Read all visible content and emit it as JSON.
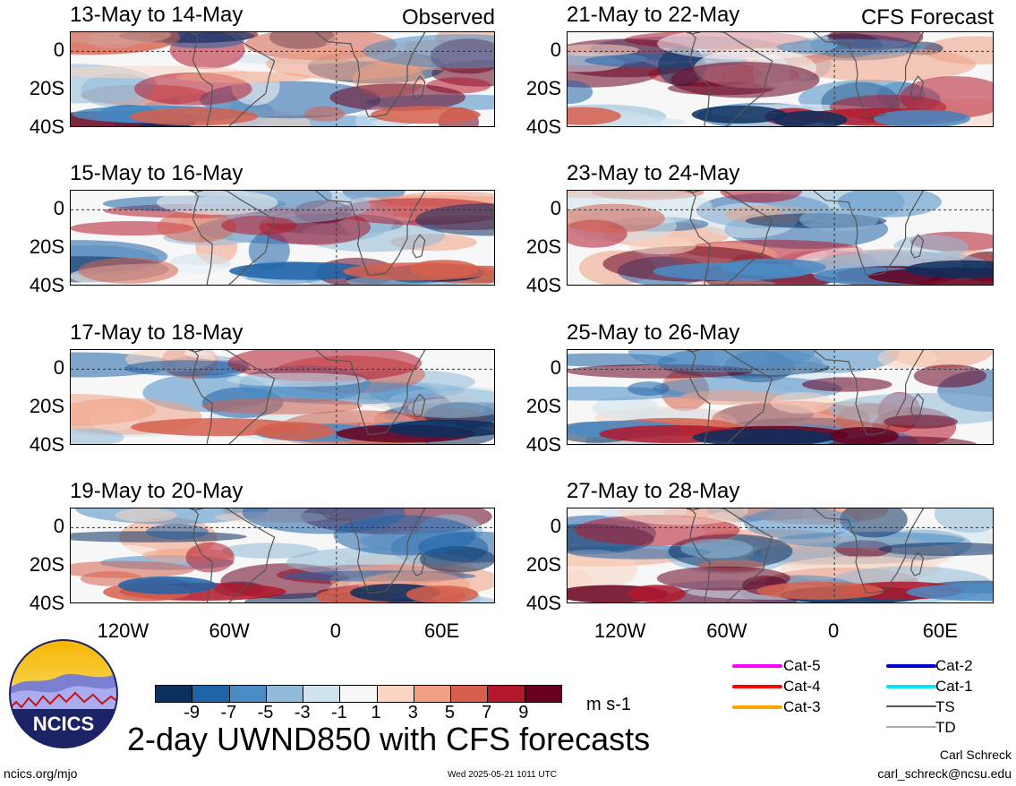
{
  "panels": [
    {
      "title": "13-May to 14-May",
      "tag": "Observed"
    },
    {
      "title": "15-May to 16-May",
      "tag": ""
    },
    {
      "title": "17-May to 18-May",
      "tag": ""
    },
    {
      "title": "19-May to 20-May",
      "tag": ""
    },
    {
      "title": "21-May to 22-May",
      "tag": "CFS Forecast"
    },
    {
      "title": "23-May to 24-May",
      "tag": ""
    },
    {
      "title": "25-May to 26-May",
      "tag": ""
    },
    {
      "title": "27-May to 28-May",
      "tag": ""
    }
  ],
  "lat_labels": [
    "0",
    "20S",
    "40S"
  ],
  "lon_labels": [
    "120W",
    "60W",
    "0",
    "60E"
  ],
  "colorbar": {
    "labels": [
      "-9",
      "-7",
      "-5",
      "-3",
      "-1",
      "1",
      "3",
      "5",
      "7",
      "9"
    ],
    "colors": [
      "#0b2f5e",
      "#1f63a8",
      "#4a8cc4",
      "#8fbad9",
      "#cfe3ef",
      "#f7f7f7",
      "#fad5c3",
      "#f0a183",
      "#d6604d",
      "#b2182b",
      "#67001f"
    ],
    "units": "m s-1"
  },
  "legend": [
    {
      "label": "Cat-5",
      "color": "#ff00ff"
    },
    {
      "label": "Cat-4",
      "color": "#ff0000"
    },
    {
      "label": "Cat-3",
      "color": "#ffa500"
    },
    {
      "label": "Cat-2",
      "color": "#0000cc"
    },
    {
      "label": "Cat-1",
      "color": "#00e5ee"
    },
    {
      "label": "TS",
      "color": "#555555"
    },
    {
      "label": "TD",
      "color": "#aaaaaa"
    }
  ],
  "logo_text": "NCICS",
  "main_title": "2-day UWND850 with CFS forecasts",
  "footer": {
    "left": "ncics.org/mjo",
    "center": "Wed 2025-05-21 1011 UTC",
    "author": "Carl Schreck",
    "email": "carl_schreck@ncsu.edu"
  }
}
